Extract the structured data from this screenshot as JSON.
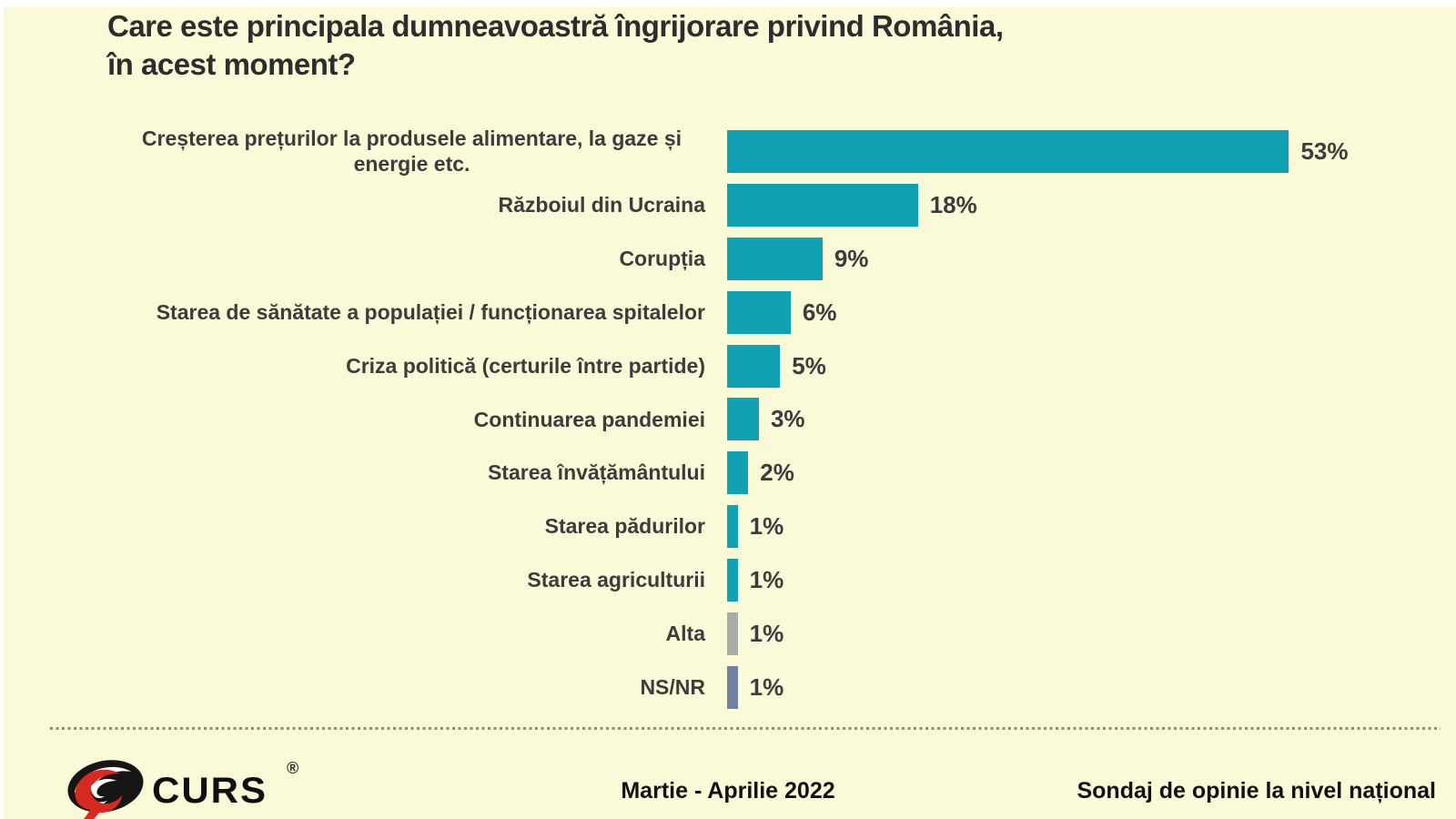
{
  "title": "Care este principala dumneavoastră îngrijorare privind România,\nîn acest moment?",
  "chart_data": {
    "type": "bar",
    "orientation": "horizontal",
    "title": "Care este principala dumneavoastră îngrijorare privind România, în acest moment?",
    "unit": "%",
    "xlim": [
      0,
      60
    ],
    "grid": false,
    "legend": "none",
    "categories": [
      "Creșterea prețurilor la produsele alimentare, la gaze și energie etc.",
      "Războiul din Ucraina",
      "Corupția",
      "Starea de sănătate a populației / funcționarea spitalelor",
      "Criza politică (certurile între partide)",
      "Continuarea pandemiei",
      "Starea învățământului",
      "Starea pădurilor",
      "Starea agriculturii",
      "Alta",
      "NS/NR"
    ],
    "values": [
      53,
      18,
      9,
      6,
      5,
      3,
      2,
      1,
      1,
      1,
      1
    ],
    "value_labels": [
      "53%",
      "18%",
      "9%",
      "6%",
      "5%",
      "3%",
      "2%",
      "1%",
      "1%",
      "1%",
      "1%"
    ],
    "bar_colors": [
      "#10A2B2",
      "#10A2B2",
      "#10A2B2",
      "#10A2B2",
      "#10A2B2",
      "#10A2B2",
      "#10A2B2",
      "#10A2B2",
      "#10A2B2",
      "#ABABAB",
      "#71819E"
    ]
  },
  "footer": {
    "logo_text": "CURS",
    "registered_mark": "®",
    "date_range": "Martie - Aprilie 2022",
    "note": "Sondaj de opinie la nivel național"
  },
  "colors": {
    "background": "#FAFAD8",
    "bar_teal": "#10A2B2",
    "bar_gray": "#ABABAB",
    "bar_slate": "#71819E",
    "text": "#3C3C3C",
    "logo_red": "#D8291F",
    "logo_black": "#161616"
  }
}
